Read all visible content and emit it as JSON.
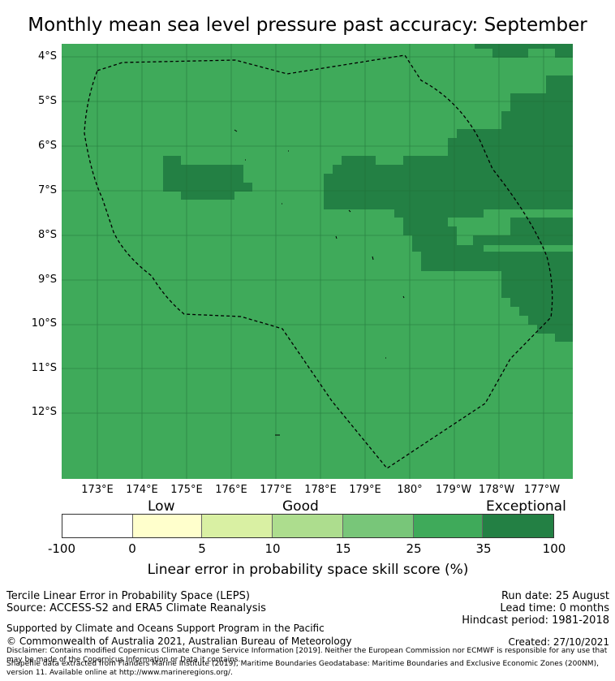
{
  "title": "Monthly mean sea level pressure past accuracy: September",
  "map": {
    "lat_labels": [
      "4°S",
      "5°S",
      "6°S",
      "7°S",
      "8°S",
      "9°S",
      "10°S",
      "11°S",
      "12°S"
    ],
    "lon_labels": [
      "173°E",
      "174°E",
      "175°E",
      "176°E",
      "177°E",
      "178°E",
      "179°E",
      "180°",
      "179°W",
      "178°W",
      "177°W"
    ],
    "colors": {
      "good_25_35": "#3faa5a",
      "exceptional_35_100": "#238044",
      "grid": "#1f6b35",
      "boundary": "#000000"
    }
  },
  "colorbar": {
    "categories": [
      "Low",
      "Good",
      "Exceptional"
    ],
    "ticks": [
      "-100",
      "0",
      "5",
      "10",
      "15",
      "25",
      "35",
      "100"
    ],
    "colors": [
      "#ffffff",
      "#ffffcc",
      "#d9f0a3",
      "#addd8e",
      "#78c679",
      "#3faa5a",
      "#238044"
    ],
    "label": "Linear error in probability space skill score (%)"
  },
  "footer": {
    "line1": "Tercile Linear Error in Probability Space (LEPS)",
    "line2": "Source: ACCESS-S2 and ERA5 Climate Reanalysis",
    "run_date": "Run date: 25 August",
    "lead_time": "Lead time: 0 months",
    "hindcast": "Hindcast period: 1981-2018",
    "supported": "Supported by Climate and Oceans Support Program in the Pacific",
    "copyright": "© Commonwealth of Australia 2021, Australian Bureau of Meteorology",
    "created": "Created: 27/10/2021",
    "disclaimer": "Disclaimer: Contains modified Copernicus Climate Change Service Information [2019]. Neither the European Commission nor ECMWF is responsible for any use that may be made of the Copernicus Information or Data it contains.",
    "shapefile": "Shapefile data extracted from Flanders Marine Institute (2019), Maritime Boundaries Geodatabase: Maritime Boundaries and Exclusive Economic Zones (200NM), version 11. Available online at http://www.marineregions.org/."
  }
}
